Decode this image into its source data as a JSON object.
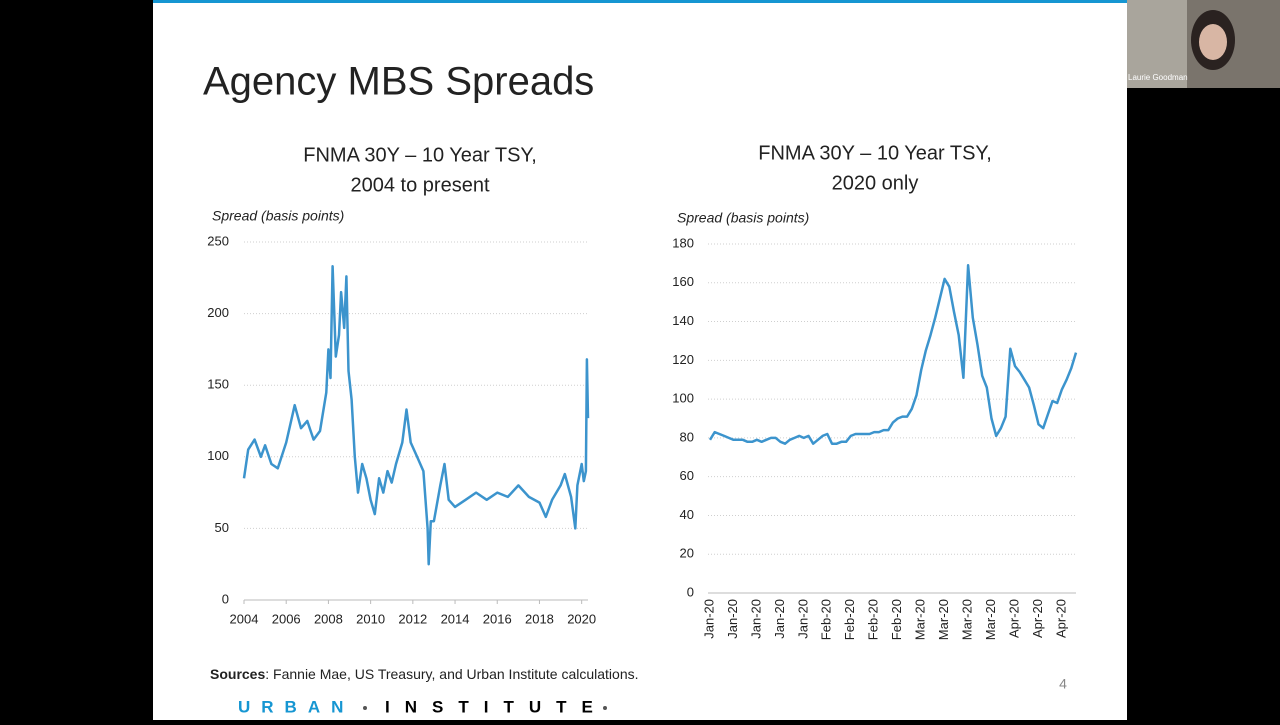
{
  "slide": {
    "title": "Agency MBS Spreads",
    "sources_label": "Sources",
    "sources_text": ": Fannie Mae, US Treasury, and Urban Institute calculations.",
    "page_number": "4",
    "logo_left": "URBAN",
    "logo_right": "INSTITUTE",
    "participant": "Laurie Goodman"
  },
  "chart_data": [
    {
      "type": "line",
      "title": [
        "FNMA 30Y –  10 Year TSY,",
        "2004 to present"
      ],
      "y_label": "Spread (basis points)",
      "color": "#3c94cd",
      "grid": true,
      "xlim": [
        2004,
        2020.3
      ],
      "xticks": [
        2004,
        2006,
        2008,
        2010,
        2012,
        2014,
        2016,
        2018,
        2020
      ],
      "ylim": [
        0,
        250
      ],
      "yticks": [
        0,
        50,
        100,
        150,
        200,
        250
      ],
      "x": [
        2004.0,
        2004.2,
        2004.5,
        2004.8,
        2005.0,
        2005.3,
        2005.6,
        2006.0,
        2006.4,
        2006.7,
        2007.0,
        2007.3,
        2007.6,
        2007.9,
        2008.0,
        2008.1,
        2008.2,
        2008.35,
        2008.5,
        2008.6,
        2008.75,
        2008.85,
        2008.95,
        2009.1,
        2009.25,
        2009.4,
        2009.6,
        2009.8,
        2010.0,
        2010.2,
        2010.4,
        2010.6,
        2010.8,
        2011.0,
        2011.2,
        2011.5,
        2011.7,
        2011.9,
        2012.2,
        2012.5,
        2012.7,
        2012.75,
        2012.85,
        2013.0,
        2013.3,
        2013.5,
        2013.7,
        2014.0,
        2014.5,
        2015.0,
        2015.5,
        2016.0,
        2016.5,
        2017.0,
        2017.5,
        2018.0,
        2018.3,
        2018.6,
        2019.0,
        2019.2,
        2019.5,
        2019.7,
        2019.8,
        2020.0,
        2020.1,
        2020.2,
        2020.25,
        2020.3
      ],
      "series": [
        {
          "values": [
            85,
            105,
            112,
            100,
            108,
            95,
            92,
            110,
            136,
            120,
            125,
            112,
            118,
            145,
            175,
            155,
            233,
            170,
            185,
            215,
            190,
            226,
            160,
            140,
            100,
            75,
            95,
            85,
            70,
            60,
            85,
            75,
            90,
            82,
            95,
            110,
            133,
            110,
            100,
            90,
            50,
            25,
            55,
            55,
            80,
            95,
            70,
            65,
            70,
            75,
            70,
            75,
            72,
            80,
            72,
            68,
            58,
            70,
            80,
            88,
            72,
            50,
            80,
            95,
            83,
            90,
            168,
            127
          ]
        }
      ]
    },
    {
      "type": "line",
      "title": [
        "FNMA 30Y – 10 Year TSY,",
        "2020 only"
      ],
      "y_label": "Spread (basis points)",
      "color": "#3c94cd",
      "grid": true,
      "ylim": [
        0,
        180
      ],
      "yticks": [
        0,
        20,
        40,
        60,
        80,
        100,
        120,
        140,
        160,
        180
      ],
      "categories": [
        "Jan-20",
        null,
        null,
        null,
        null,
        "Jan-20",
        null,
        null,
        null,
        null,
        "Jan-20",
        null,
        null,
        null,
        null,
        "Jan-20",
        null,
        null,
        null,
        null,
        "Jan-20",
        null,
        null,
        null,
        null,
        "Feb-20",
        null,
        null,
        null,
        null,
        "Feb-20",
        null,
        null,
        null,
        null,
        "Feb-20",
        null,
        null,
        null,
        null,
        "Feb-20",
        null,
        null,
        null,
        null,
        "Mar-20",
        null,
        null,
        null,
        null,
        "Mar-20",
        null,
        null,
        null,
        null,
        "Mar-20",
        null,
        null,
        null,
        null,
        "Mar-20",
        null,
        null,
        null,
        null,
        "Apr-20",
        null,
        null,
        null,
        null,
        "Apr-20",
        null,
        null,
        null,
        null,
        "Apr-20",
        null,
        null,
        null
      ],
      "series": [
        {
          "values": [
            79,
            83,
            82,
            81,
            80,
            79,
            79,
            79,
            78,
            78,
            79,
            78,
            79,
            80,
            80,
            78,
            77,
            79,
            80,
            81,
            80,
            81,
            77,
            79,
            81,
            82,
            77,
            77,
            78,
            78,
            81,
            82,
            82,
            82,
            82,
            83,
            83,
            84,
            84,
            88,
            90,
            91,
            91,
            95,
            102,
            115,
            125,
            133,
            142,
            152,
            162,
            158,
            145,
            133,
            111,
            169,
            142,
            128,
            112,
            106,
            90,
            81,
            85,
            91,
            126,
            117,
            114,
            110,
            106,
            97,
            87,
            85,
            92,
            99,
            98,
            105,
            110,
            116,
            124
          ]
        }
      ]
    }
  ]
}
